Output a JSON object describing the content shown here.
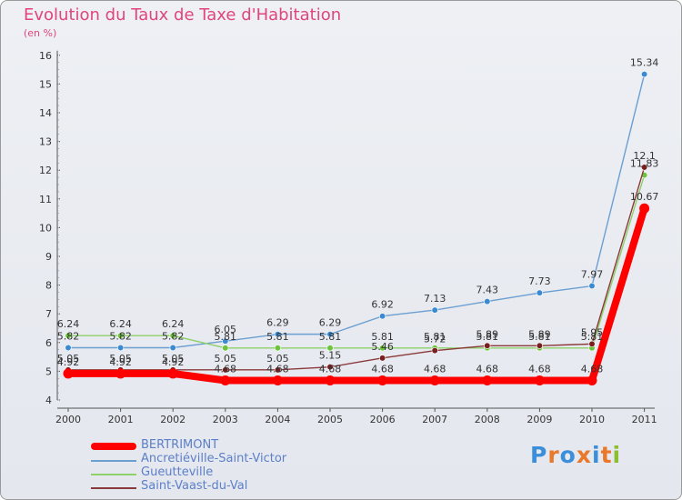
{
  "header": {
    "title": "Evolution du Taux de Taxe d'Habitation",
    "subtitle": "(en %)"
  },
  "logo": {
    "text": "Proxiti",
    "colors": [
      "#3b8ed9",
      "#e9782b",
      "#3b8ed9",
      "#e9782b",
      "#3b8ed9",
      "#e9782b",
      "#8bbf2e"
    ]
  },
  "chart_data": {
    "type": "line",
    "title": "Evolution du Taux de Taxe d'Habitation",
    "ylabel": "(en %)",
    "xlabel": "",
    "ylim": [
      4,
      16
    ],
    "yticks": [
      4,
      5,
      6,
      7,
      8,
      9,
      10,
      11,
      12,
      13,
      14,
      15,
      16
    ],
    "grid": false,
    "legend_position": "bottom-left",
    "categories": [
      "2000",
      "2001",
      "2002",
      "2003",
      "2004",
      "2005",
      "2006",
      "2007",
      "2008",
      "2009",
      "2010",
      "2011"
    ],
    "series": [
      {
        "name": "BERTRIMONT",
        "color": "#ff0000",
        "role": "main",
        "values": [
          4.92,
          4.92,
          4.92,
          4.68,
          4.68,
          4.68,
          4.68,
          4.68,
          4.68,
          4.68,
          4.68,
          10.67
        ],
        "labels": [
          "4.92",
          "4.92",
          "4.92",
          "4.68",
          "4.68",
          "4.68",
          "4.68",
          "4.68",
          "4.68",
          "4.68",
          "4.68",
          "10.67"
        ]
      },
      {
        "name": "Ancretiéville-Saint-Victor",
        "color": "#6b9fd1",
        "marker": "#3a8ad2",
        "values": [
          5.82,
          5.82,
          5.82,
          6.05,
          6.29,
          6.29,
          6.92,
          7.13,
          7.43,
          7.73,
          7.97,
          15.34
        ],
        "labels": [
          "5.82",
          "5.82",
          "5.82",
          "6.05",
          "6.29",
          "6.29",
          "6.92",
          "7.13",
          "7.43",
          "7.73",
          "7.97",
          "15.34"
        ]
      },
      {
        "name": "Gueutteville",
        "color": "#8ed06a",
        "marker": "#6cc43c",
        "values": [
          6.24,
          6.24,
          6.24,
          5.81,
          5.81,
          5.81,
          5.81,
          5.81,
          5.81,
          5.81,
          5.81,
          11.83
        ],
        "labels": [
          "6.24",
          "6.24",
          "6.24",
          "5.81",
          "5.81",
          "5.81",
          "5.81",
          "5.81",
          "5.81",
          "5.81",
          "5.81",
          "11.83"
        ]
      },
      {
        "name": "Saint-Vaast-du-Val",
        "color": "#8a3a3a",
        "marker": "#7a1f1f",
        "values": [
          5.05,
          5.05,
          5.05,
          5.05,
          5.05,
          5.15,
          5.46,
          5.72,
          5.89,
          5.89,
          5.95,
          12.1
        ],
        "labels": [
          "5.05",
          "5.05",
          "5.05",
          "5.05",
          "5.05",
          "5.15",
          "5.46",
          "5.72",
          "5.89",
          "5.89",
          "5.95",
          "12.1"
        ]
      }
    ]
  }
}
